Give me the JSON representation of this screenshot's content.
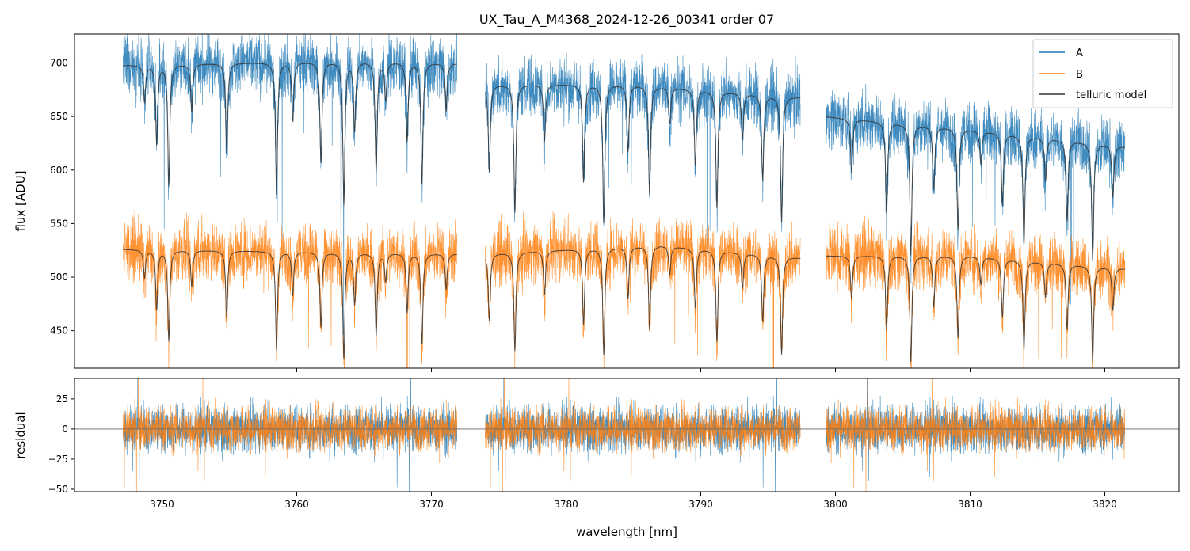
{
  "chart_data": [
    {
      "type": "line",
      "title": "UX_Tau_A_M4368_2024-12-26_00341  order 07",
      "ylabel": "flux [ADU]",
      "xlim": [
        3743.5,
        3825.5
      ],
      "ylim": [
        415,
        727
      ],
      "yticks": [
        450,
        500,
        550,
        600,
        650,
        700
      ],
      "grid": false,
      "legend_position": "top-right",
      "legend": [
        "A",
        "B",
        "telluric model"
      ],
      "segments": [
        [
          3747.1,
          3771.9
        ],
        [
          3774.0,
          3797.4
        ],
        [
          3799.3,
          3821.5
        ]
      ],
      "series": [
        {
          "name": "A",
          "color": "#1f77b4",
          "continuum": [
            [
              3747.1,
              698
            ],
            [
              3755,
              700
            ],
            [
              3765,
              702
            ],
            [
              3771.9,
              700
            ],
            [
              3774.0,
              680
            ],
            [
              3785,
              680
            ],
            [
              3797.4,
              668
            ],
            [
              3799.3,
              650
            ],
            [
              3810,
              638
            ],
            [
              3821.5,
              622
            ]
          ],
          "noise_amplitude": 14
        },
        {
          "name": "B",
          "color": "#ff7f0e",
          "continuum": [
            [
              3747.1,
              526
            ],
            [
              3760,
              524
            ],
            [
              3771.9,
              522
            ],
            [
              3774.0,
              522
            ],
            [
              3787,
              530
            ],
            [
              3797.4,
              518
            ],
            [
              3799.3,
              520
            ],
            [
              3810,
              520
            ],
            [
              3821.5,
              508
            ]
          ],
          "noise_amplitude": 14
        },
        {
          "name": "telluric model",
          "color": "#333333"
        }
      ],
      "absorption_lines": [
        3748.7,
        3749.6,
        3750.5,
        3752.2,
        3754.8,
        3758.5,
        3759.7,
        3761.8,
        3763.5,
        3764.3,
        3765.9,
        3766.6,
        3768.2,
        3769.3,
        3771.1,
        3774.3,
        3776.2,
        3778.4,
        3781.3,
        3782.8,
        3784.6,
        3786.2,
        3787.7,
        3789.6,
        3791.2,
        3793.1,
        3794.6,
        3796.0,
        3801.2,
        3803.8,
        3805.6,
        3807.3,
        3809.1,
        3810.8,
        3812.4,
        3814.0,
        3815.6,
        3817.2,
        3819.1,
        3820.6
      ]
    },
    {
      "type": "line",
      "xlabel": "wavelength [nm]",
      "ylabel": "residual",
      "xlim": [
        3743.5,
        3825.5
      ],
      "ylim": [
        -52,
        42
      ],
      "xticks": [
        3750,
        3760,
        3770,
        3780,
        3790,
        3800,
        3810,
        3820
      ],
      "yticks": [
        -50,
        -25,
        0,
        25
      ],
      "grid": false,
      "zero_line": 0,
      "series": [
        {
          "name": "A",
          "color": "#1f77b4",
          "noise_amplitude": 14
        },
        {
          "name": "B",
          "color": "#ff7f0e",
          "noise_amplitude": 13
        }
      ]
    }
  ]
}
